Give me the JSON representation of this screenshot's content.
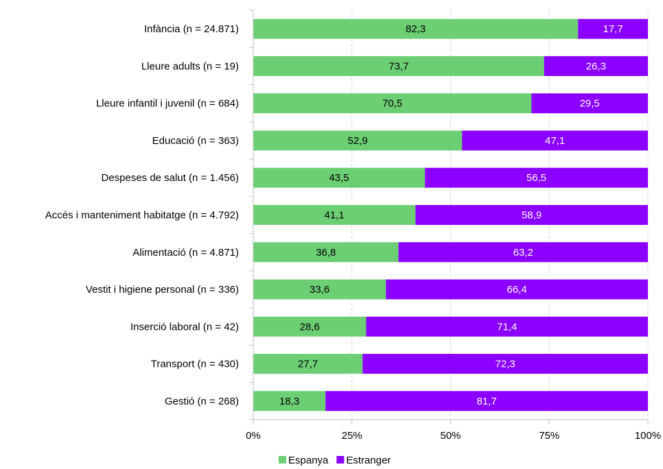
{
  "chart_data": {
    "type": "bar",
    "orientation": "horizontal",
    "stacked": true,
    "percent": true,
    "categories": [
      "Infància (n = 24.871)",
      "Lleure adults (n = 19)",
      "Lleure infantil i juvenil (n = 684)",
      "Educació (n = 363)",
      "Despeses de salut (n = 1.456)",
      "Accés i manteniment habitatge (n = 4.792)",
      "Alimentació (n = 4.871)",
      "Vestit i higiene personal (n = 336)",
      "Inserció laboral (n = 42)",
      "Transport (n = 430)",
      "Gestió (n = 268)"
    ],
    "series": [
      {
        "name": "Espanya",
        "color": "#6CCF74",
        "label_color": "#000000",
        "values": [
          82.3,
          73.7,
          70.5,
          52.9,
          43.5,
          41.1,
          36.8,
          33.6,
          28.6,
          27.7,
          18.3
        ],
        "labels": [
          "82,3",
          "73,7",
          "70,5",
          "52,9",
          "43,5",
          "41,1",
          "36,8",
          "33,6",
          "28,6",
          "27,7",
          "18,3"
        ]
      },
      {
        "name": "Estranger",
        "color": "#8B00FF",
        "label_color": "#ffffff",
        "values": [
          17.7,
          26.3,
          29.5,
          47.1,
          56.5,
          58.9,
          63.2,
          66.4,
          71.4,
          72.3,
          81.7
        ],
        "labels": [
          "17,7",
          "26,3",
          "29,5",
          "47,1",
          "56,5",
          "58,9",
          "63,2",
          "66,4",
          "71,4",
          "72,3",
          "81,7"
        ]
      }
    ],
    "xlim": [
      0,
      100
    ],
    "xticks": [
      0,
      25,
      50,
      75,
      100
    ],
    "xtick_labels": [
      "0%",
      "25%",
      "50%",
      "75%",
      "100%"
    ],
    "grid": "vertical dashed",
    "legend": "bottom-center",
    "axis_color": "#bfbfbf",
    "grid_color": "#d0d0d0"
  }
}
